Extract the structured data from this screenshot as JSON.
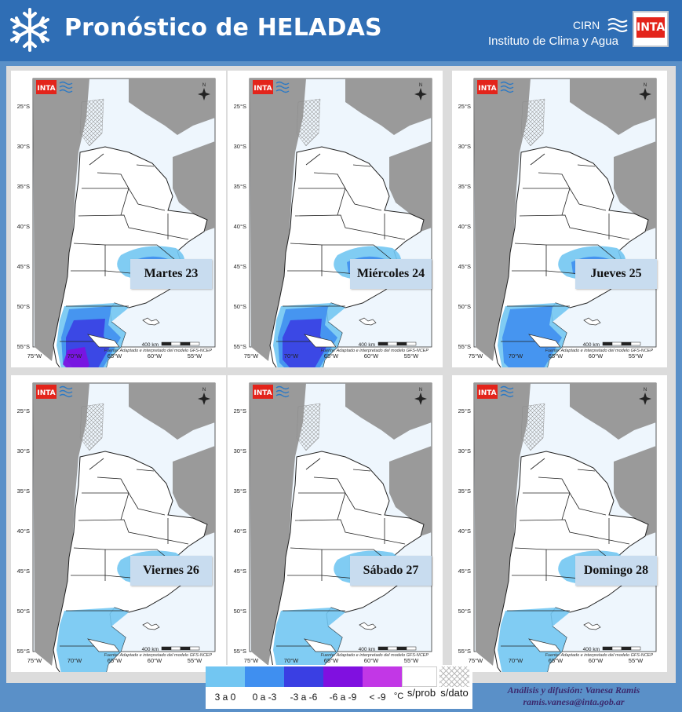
{
  "header": {
    "title": "Pronóstico de HELADAS",
    "org_short": "CIRN",
    "org_name": "Instituto de Clima y Agua",
    "logo_text": "INTA",
    "icons": [
      "snowflake-icon",
      "cirn-waves-icon",
      "inta-logo"
    ]
  },
  "map_common": {
    "logo_text": "INTA",
    "lat_ticks": [
      "25°S",
      "30°S",
      "35°S",
      "40°S",
      "45°S",
      "50°S",
      "55°S"
    ],
    "lon_ticks": [
      "75°W",
      "70°W",
      "65°W",
      "60°W",
      "55°W"
    ],
    "scale_text": "400 km",
    "source_text": "Fuente: Adaptado e interpretado del modelo GFS-NCEP",
    "north_label": "N"
  },
  "panels": [
    {
      "label": "Martes 23",
      "intensity": 4
    },
    {
      "label": "Miércoles 24",
      "intensity": 3
    },
    {
      "label": "Jueves 25",
      "intensity": 2
    },
    {
      "label": "Viernes 26",
      "intensity": 1
    },
    {
      "label": "Sábado 27",
      "intensity": 1
    },
    {
      "label": "Domingo 28",
      "intensity": 1
    }
  ],
  "legend": {
    "items": [
      {
        "label": "3 a 0",
        "color": "#72c6f2"
      },
      {
        "label": "0 a -3",
        "color": "#3f8ff0"
      },
      {
        "label": "-3 a -6",
        "color": "#3a3fe3"
      },
      {
        "label": "-6 a -9",
        "color": "#8010e0"
      },
      {
        "label": "< -9",
        "color": "#c237e6"
      },
      {
        "label": "s/prob",
        "color": "#ffffff"
      },
      {
        "label": "s/dato",
        "color": "#e4e4e4"
      }
    ],
    "unit": "°C"
  },
  "credit": {
    "line1": "Análisis y difusión: Vanesa Ramis",
    "line2": "ramis.vanesa@inta.gob.ar"
  }
}
